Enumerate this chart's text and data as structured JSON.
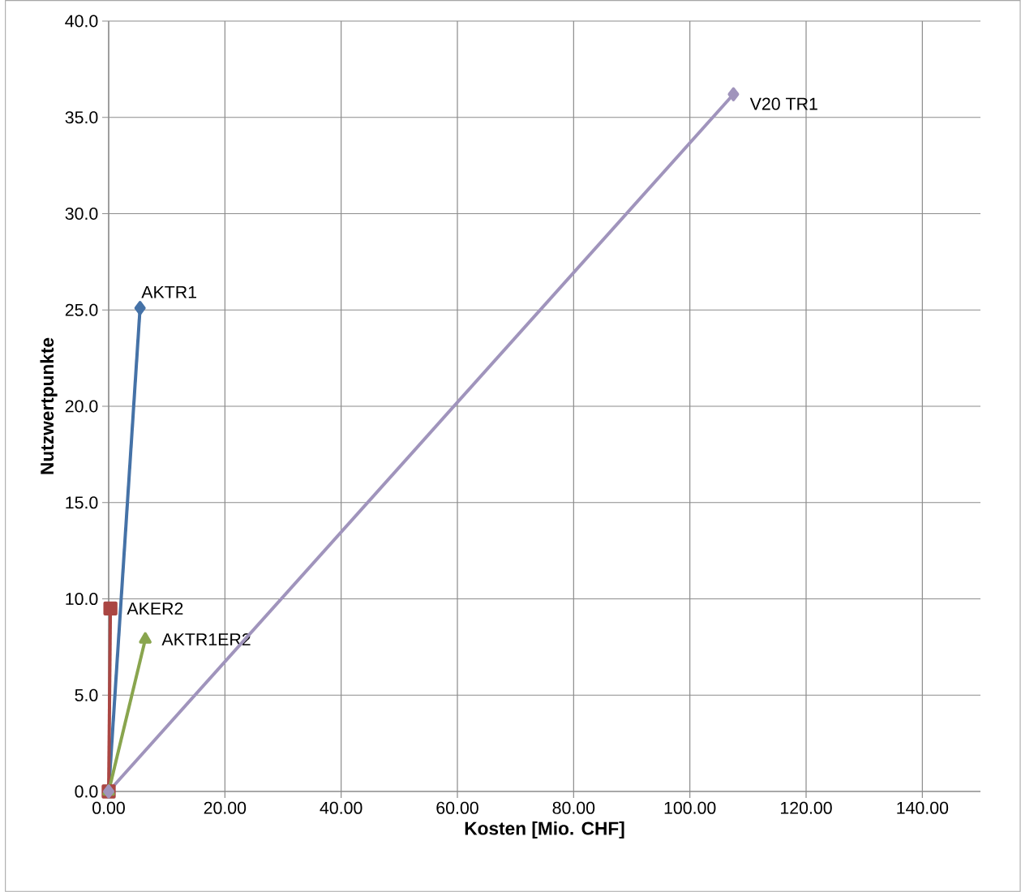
{
  "chart_data": {
    "type": "line",
    "xlabel": "Kosten [Mio. CHF]",
    "ylabel": "Nutzwertpunkte",
    "xlim": [
      0,
      150
    ],
    "ylim": [
      0,
      40
    ],
    "xticks": [
      {
        "value": 0,
        "label": "0.00"
      },
      {
        "value": 20,
        "label": "20.00"
      },
      {
        "value": 40,
        "label": "40.00"
      },
      {
        "value": 60,
        "label": "60.00"
      },
      {
        "value": 80,
        "label": "80.00"
      },
      {
        "value": 100,
        "label": "100.00"
      },
      {
        "value": 120,
        "label": "120.00"
      },
      {
        "value": 140,
        "label": "140.00"
      }
    ],
    "yticks": [
      {
        "value": 0,
        "label": "0.0"
      },
      {
        "value": 5,
        "label": "5.0"
      },
      {
        "value": 10,
        "label": "10.0"
      },
      {
        "value": 15,
        "label": "15.0"
      },
      {
        "value": 20,
        "label": "20.0"
      },
      {
        "value": 25,
        "label": "25.0"
      },
      {
        "value": 30,
        "label": "30.0"
      },
      {
        "value": 35,
        "label": "35.0"
      },
      {
        "value": 40,
        "label": "40.0"
      }
    ],
    "grid": true,
    "line_style": "solid",
    "series": [
      {
        "name": "AKTR1",
        "color": "#4572a7",
        "marker": "diamond",
        "x": [
          0,
          5.4
        ],
        "values": [
          0,
          25.1
        ]
      },
      {
        "name": "AKER2",
        "color": "#aa4643",
        "marker": "square",
        "x": [
          0,
          0.3
        ],
        "values": [
          0,
          9.5
        ]
      },
      {
        "name": "AKTR1ER2",
        "color": "#89a54e",
        "marker": "triangle",
        "x": [
          0,
          6.3
        ],
        "values": [
          0,
          7.9
        ]
      },
      {
        "name": "V20 TR1",
        "color": "#a094bc",
        "marker": "diamond",
        "x": [
          0,
          107.5
        ],
        "values": [
          0,
          36.2
        ]
      }
    ]
  }
}
